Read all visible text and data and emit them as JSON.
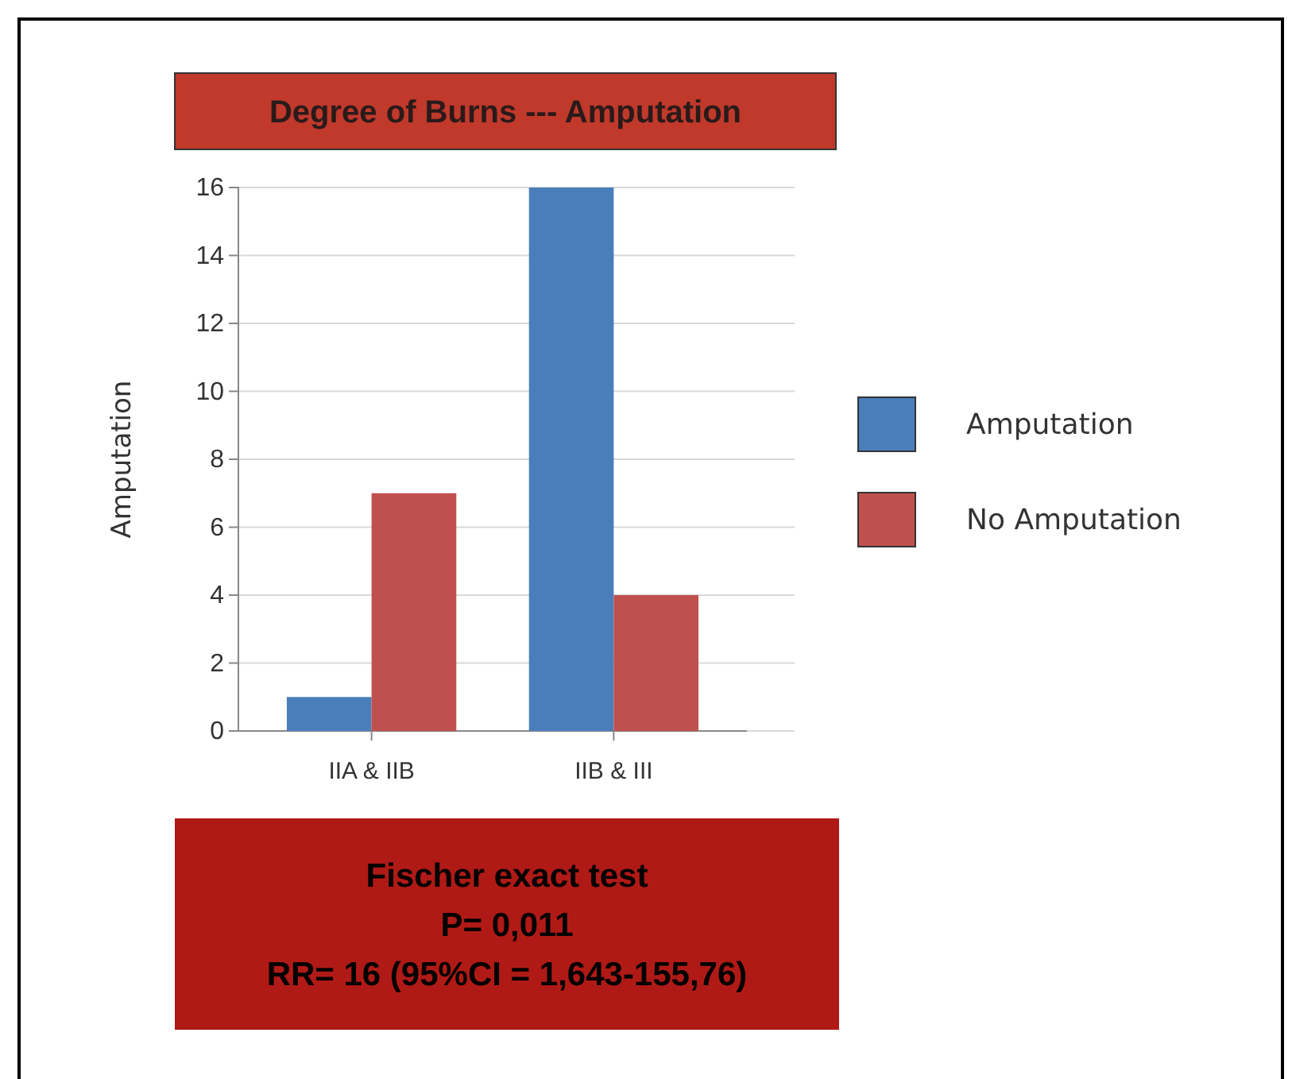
{
  "chart_data": {
    "type": "bar",
    "title": "Degree of Burns  --- Amputation",
    "ylabel": "Amputation",
    "categories": [
      "IIA & IIB",
      "IIB & III"
    ],
    "series": [
      {
        "name": "Amputation",
        "color": "#4a7ebb",
        "values": [
          1,
          16
        ]
      },
      {
        "name": "No Amputation",
        "color": "#c0504d",
        "values": [
          7,
          4
        ]
      }
    ],
    "ylim": [
      0,
      16
    ],
    "yticks": [
      0,
      2,
      4,
      6,
      8,
      10,
      12,
      14,
      16
    ],
    "grid": "y",
    "legend": "right",
    "annotations": [
      "Fischer exact test",
      "P= 0,011",
      "RR= 16 (95%CI = 1,643-155,76)"
    ]
  }
}
